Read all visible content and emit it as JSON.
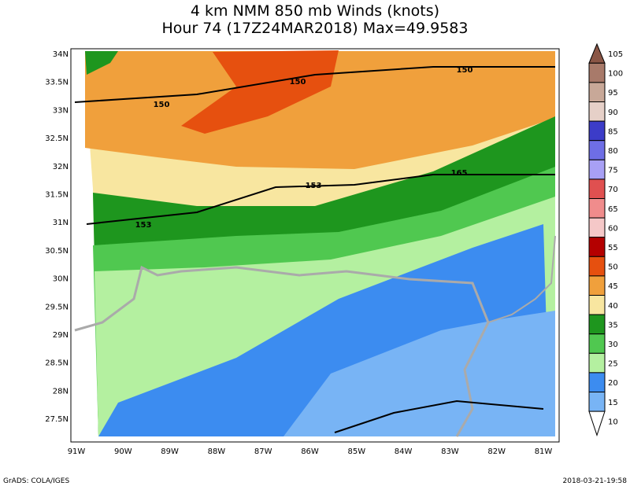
{
  "header": {
    "title": "4 km NMM 850 mb Winds (knots)",
    "subtitle": "Hour 74 (17Z24MAR2018) Max=49.9583"
  },
  "map": {
    "lat_labels": [
      "34N",
      "33.5N",
      "33N",
      "32.5N",
      "32N",
      "31.5N",
      "31N",
      "30.5N",
      "30N",
      "29.5N",
      "29N",
      "28.5N",
      "28N",
      "27.5N"
    ],
    "lon_labels": [
      "91W",
      "90W",
      "89W",
      "88W",
      "87W",
      "86W",
      "85W",
      "84W",
      "83W",
      "82W",
      "81W"
    ],
    "contour_labels": [
      "150",
      "150",
      "150",
      "153",
      "153",
      "165"
    ]
  },
  "colorbar": {
    "levels": [
      {
        "value": 105,
        "color": "#8a5646"
      },
      {
        "value": 100,
        "color": "#a87a6a"
      },
      {
        "value": 95,
        "color": "#c8a898"
      },
      {
        "value": 90,
        "color": "#e6d0c8"
      },
      {
        "value": 85,
        "color": "#3c3cc8"
      },
      {
        "value": 80,
        "color": "#6e6ee6"
      },
      {
        "value": 75,
        "color": "#a8a0f5"
      },
      {
        "value": 70,
        "color": "#e05050"
      },
      {
        "value": 65,
        "color": "#f08c8c"
      },
      {
        "value": 60,
        "color": "#f5c8c8"
      },
      {
        "value": 55,
        "color": "#b40000"
      },
      {
        "value": 50,
        "color": "#e6500f"
      },
      {
        "value": 45,
        "color": "#f0a03c"
      },
      {
        "value": 40,
        "color": "#f8e6a0"
      },
      {
        "value": 35,
        "color": "#1e961e"
      },
      {
        "value": 30,
        "color": "#50c850"
      },
      {
        "value": 25,
        "color": "#b4f0a0"
      },
      {
        "value": 20,
        "color": "#3c8cf0"
      },
      {
        "value": 15,
        "color": "#78b4f5"
      },
      {
        "value": 10,
        "color": "#ffffff"
      }
    ]
  },
  "footer": {
    "left": "GrADS: COLA/IGES",
    "right": "2018-03-21-19:58"
  }
}
